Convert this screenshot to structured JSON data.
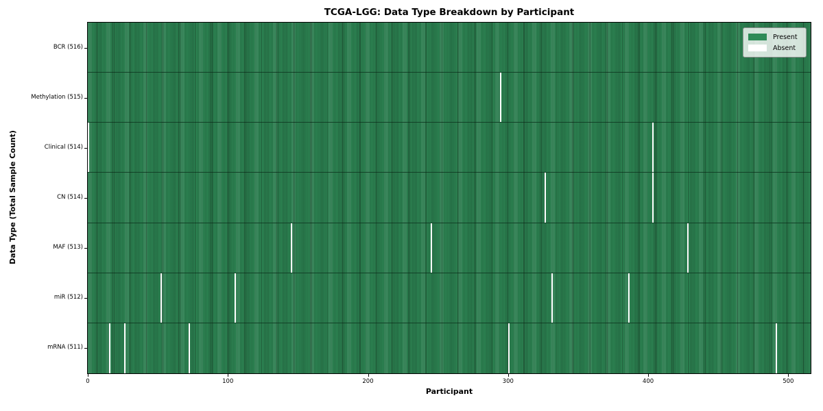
{
  "chart_data": {
    "type": "heatmap",
    "title": "TCGA-LGG: Data Type Breakdown by Participant",
    "xlabel": "Participant",
    "ylabel": "Data Type (Total Sample Count)",
    "xlim": [
      0,
      516
    ],
    "n_participants": 516,
    "x_ticks": [
      0,
      100,
      200,
      300,
      400,
      500
    ],
    "grid": false,
    "legend_position": "upper right",
    "categories": [
      "BCR (516)",
      "Methylation (515)",
      "Clinical (514)",
      "CN (514)",
      "MAF (513)",
      "miR (512)",
      "mRNA (511)"
    ],
    "rows": [
      {
        "label": "BCR (516)",
        "data_type": "BCR",
        "sample_count": 516,
        "absent_participants": []
      },
      {
        "label": "Methylation (515)",
        "data_type": "Methylation",
        "sample_count": 515,
        "absent_participants": [
          294
        ]
      },
      {
        "label": "Clinical (514)",
        "data_type": "Clinical",
        "sample_count": 514,
        "absent_participants": [
          0,
          403
        ]
      },
      {
        "label": "CN (514)",
        "data_type": "CN",
        "sample_count": 514,
        "absent_participants": [
          326,
          403
        ]
      },
      {
        "label": "MAF (513)",
        "data_type": "MAF",
        "sample_count": 513,
        "absent_participants": [
          145,
          245,
          428
        ]
      },
      {
        "label": "miR (512)",
        "data_type": "miR",
        "sample_count": 512,
        "absent_participants": [
          52,
          105,
          331,
          386
        ]
      },
      {
        "label": "mRNA (511)",
        "data_type": "mRNA",
        "sample_count": 511,
        "absent_participants": [
          15,
          26,
          72,
          300,
          491
        ]
      }
    ],
    "legend": [
      {
        "label": "Present",
        "color": "#2e8b57"
      },
      {
        "label": "Absent",
        "color": "#ffffff"
      }
    ],
    "colors": {
      "present": "#2e8b57",
      "bar_edge": "#1c4a2e",
      "absent": "#ffffff",
      "row_divider": "#123020",
      "plot_border": "#000000"
    }
  }
}
